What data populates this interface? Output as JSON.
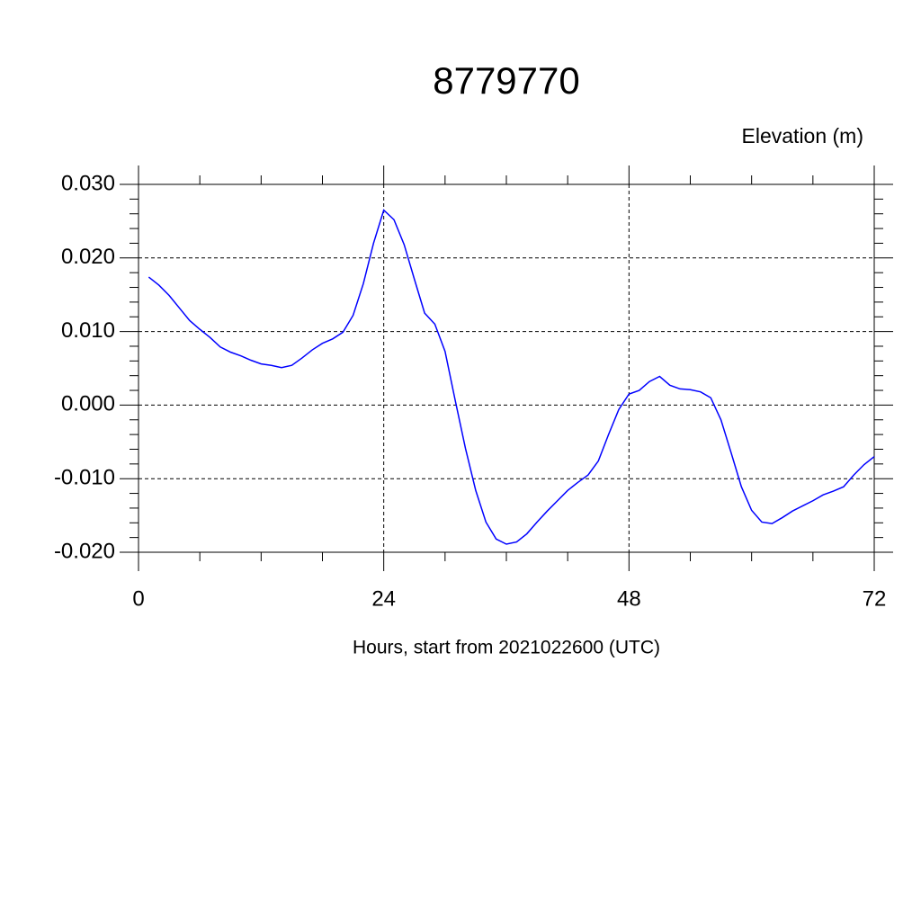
{
  "chart_data": {
    "type": "line",
    "title": "8779770",
    "subtitle": "Elevation (m)",
    "x_label": "Hours, start from 2021022600 (UTC)",
    "x": [
      1,
      2,
      3,
      4,
      5,
      6,
      7,
      8,
      9,
      10,
      11,
      12,
      13,
      14,
      15,
      16,
      17,
      18,
      19,
      20,
      21,
      22,
      23,
      24,
      25,
      26,
      27,
      28,
      29,
      30,
      31,
      32,
      33,
      34,
      35,
      36,
      37,
      38,
      39,
      40,
      41,
      42,
      43,
      44,
      45,
      46,
      47,
      48,
      49,
      50,
      51,
      52,
      53,
      54,
      55,
      56,
      57,
      58,
      59,
      60,
      61,
      62,
      63,
      64,
      65,
      66,
      67,
      68,
      69,
      70,
      71,
      72
    ],
    "series": [
      {
        "color": "#0000ff",
        "values": [
          0.0174,
          0.0163,
          0.0149,
          0.0132,
          0.0115,
          0.0103,
          0.0092,
          0.0079,
          0.0072,
          0.0067,
          0.0061,
          0.0056,
          0.0054,
          0.0051,
          0.0054,
          0.0064,
          0.0075,
          0.0084,
          0.009,
          0.0099,
          0.0122,
          0.0165,
          0.022,
          0.0265,
          0.0252,
          0.0218,
          0.0171,
          0.0125,
          0.011,
          0.0073,
          0.0006,
          -0.0059,
          -0.0116,
          -0.0159,
          -0.0182,
          -0.0189,
          -0.0186,
          -0.0175,
          -0.0159,
          -0.0144,
          -0.013,
          -0.0116,
          -0.0105,
          -0.0095,
          -0.0076,
          -0.004,
          -0.0006,
          0.0015,
          0.002,
          0.0032,
          0.0039,
          0.0027,
          0.0022,
          0.0021,
          0.0018,
          0.001,
          -0.002,
          -0.0065,
          -0.0111,
          -0.0143,
          -0.0159,
          -0.0161,
          -0.0153,
          -0.0144,
          -0.0137,
          -0.013,
          -0.0122,
          -0.0117,
          -0.0111,
          -0.0095,
          -0.0081,
          -0.007
        ]
      }
    ],
    "xlim": [
      0,
      72
    ],
    "xticks": [
      0,
      24,
      48,
      72
    ],
    "ylim": [
      -0.02,
      0.03
    ],
    "yticks": [
      {
        "value": -0.02,
        "label": "-0.020"
      },
      {
        "value": -0.01,
        "label": "-0.010"
      },
      {
        "value": 0,
        "label": "0.000"
      },
      {
        "value": 0.01,
        "label": "0.010"
      },
      {
        "value": 0.02,
        "label": "0.020"
      },
      {
        "value": 0.03,
        "label": "0.030"
      }
    ],
    "grid": true
  }
}
